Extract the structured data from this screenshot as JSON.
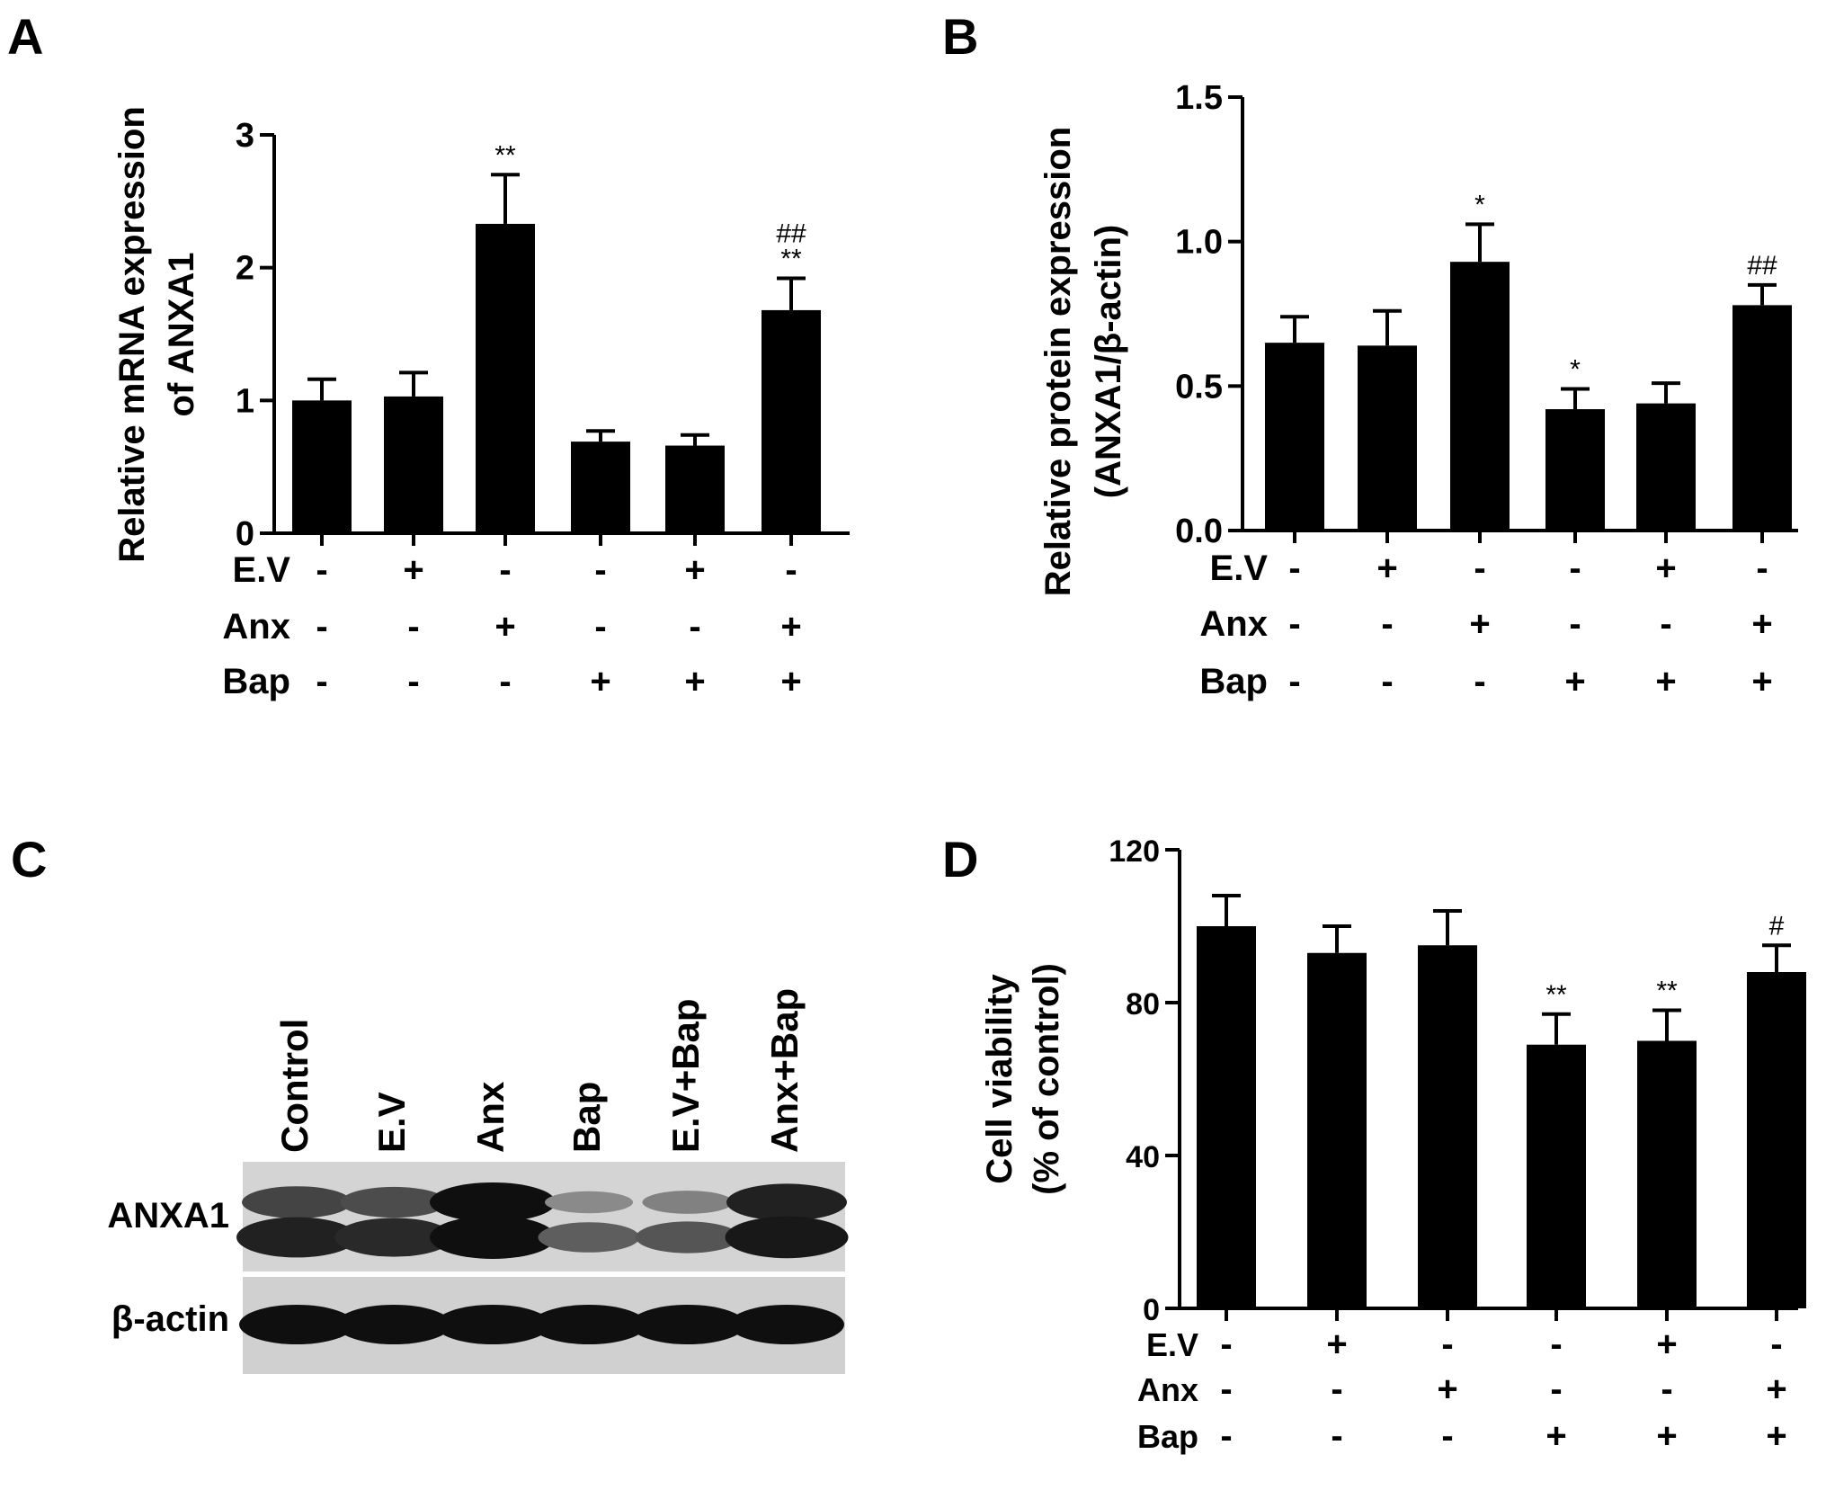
{
  "chart_data": [
    {
      "type": "bar",
      "panel": "A",
      "ylabel_lines": [
        "Relative mRNA expression",
        "of ANXA1"
      ],
      "ylim": [
        0,
        3
      ],
      "yticks": [
        "0",
        "1",
        "2",
        "3"
      ],
      "values": [
        1.0,
        1.03,
        2.33,
        0.69,
        0.66,
        1.68
      ],
      "errors": [
        0.16,
        0.18,
        0.37,
        0.08,
        0.08,
        0.24
      ],
      "sig_above": [
        "",
        "",
        "**",
        "",
        "",
        "**"
      ],
      "sig_top": [
        "",
        "",
        "",
        "",
        "",
        "##"
      ],
      "rows": [
        {
          "label": "E.V",
          "signs": [
            "-",
            "+",
            "-",
            "-",
            "+",
            "-"
          ]
        },
        {
          "label": "Anx",
          "signs": [
            "-",
            "-",
            "+",
            "-",
            "-",
            "+"
          ]
        },
        {
          "label": "Bap",
          "signs": [
            "-",
            "-",
            "-",
            "+",
            "+",
            "+"
          ]
        }
      ]
    },
    {
      "type": "bar",
      "panel": "B",
      "ylabel_lines": [
        "Relative protein expression",
        "(ANXA1/β-actin)"
      ],
      "ylim": [
        0,
        1.5
      ],
      "yticks": [
        "0.0",
        "0.5",
        "1.0",
        "1.5"
      ],
      "values": [
        0.65,
        0.64,
        0.93,
        0.42,
        0.44,
        0.78
      ],
      "errors": [
        0.09,
        0.12,
        0.13,
        0.07,
        0.07,
        0.07
      ],
      "sig_above": [
        "",
        "",
        "*",
        "*",
        "",
        "##"
      ],
      "sig_top": [
        "",
        "",
        "",
        "",
        "",
        ""
      ],
      "rows": [
        {
          "label": "E.V",
          "signs": [
            "-",
            "+",
            "-",
            "-",
            "+",
            "-"
          ]
        },
        {
          "label": "Anx",
          "signs": [
            "-",
            "-",
            "+",
            "-",
            "-",
            "+"
          ]
        },
        {
          "label": "Bap",
          "signs": [
            "-",
            "-",
            "-",
            "+",
            "+",
            "+"
          ]
        }
      ]
    },
    {
      "type": "bar",
      "panel": "D",
      "ylabel_lines": [
        "Cell viability",
        "(% of control)"
      ],
      "ylim": [
        0,
        120
      ],
      "yticks": [
        "0",
        "40",
        "80",
        "120"
      ],
      "values": [
        100,
        93,
        95,
        69,
        70,
        88
      ],
      "errors": [
        8,
        7,
        9,
        8,
        8,
        7
      ],
      "sig_above": [
        "",
        "",
        "",
        "**",
        "**",
        "#"
      ],
      "sig_top": [
        "",
        "",
        "",
        "",
        "",
        ""
      ],
      "rows": [
        {
          "label": "E.V",
          "signs": [
            "-",
            "+",
            "-",
            "-",
            "+",
            "-"
          ]
        },
        {
          "label": "Anx",
          "signs": [
            "-",
            "-",
            "+",
            "-",
            "-",
            "+"
          ]
        },
        {
          "label": "Bap",
          "signs": [
            "-",
            "-",
            "-",
            "+",
            "+",
            "+"
          ]
        }
      ]
    }
  ],
  "blot": {
    "panel": "C",
    "lanes": [
      "Control",
      "E.V",
      "Anx",
      "Bap",
      "E.V+Bap",
      "Anx+Bap"
    ],
    "bands": [
      {
        "label": "ANXA1",
        "intensity_upper": [
          0.7,
          0.65,
          1.0,
          0.3,
          0.35,
          0.9
        ],
        "intensity_lower": [
          0.9,
          0.85,
          1.0,
          0.55,
          0.6,
          0.95
        ]
      },
      {
        "label": "β-actin",
        "intensity": [
          1.0,
          1.0,
          1.0,
          1.0,
          1.0,
          1.0
        ]
      }
    ]
  }
}
